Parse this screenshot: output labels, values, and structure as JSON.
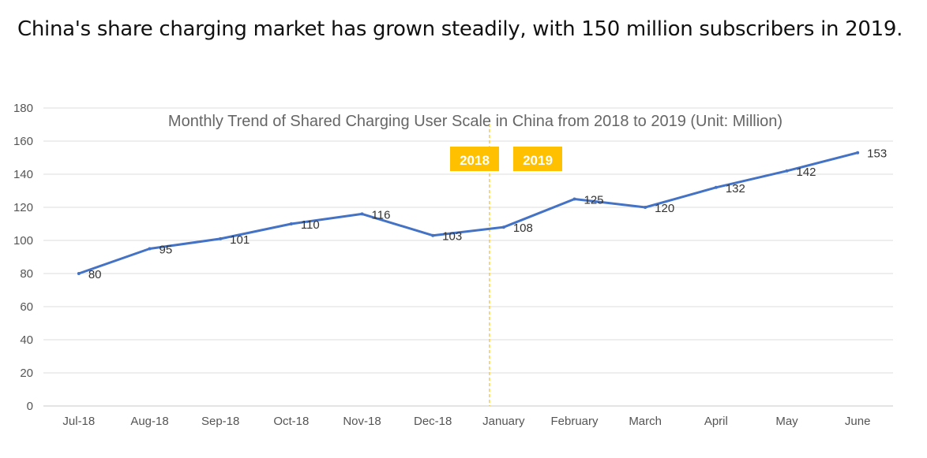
{
  "headline": "China's share charging market has grown steadily, with 150 million subscribers in 2019.",
  "chart_data": {
    "type": "line",
    "title": "Monthly Trend of Shared Charging User Scale in China from 2018 to 2019 (Unit: Million)",
    "categories": [
      "Jul-18",
      "Aug-18",
      "Sep-18",
      "Oct-18",
      "Nov-18",
      "Dec-18",
      "January",
      "February",
      "March",
      "April",
      "May",
      "June"
    ],
    "series": [
      {
        "values": [
          80,
          95,
          101,
          110,
          116,
          103,
          108,
          125,
          120,
          132,
          142,
          153
        ]
      }
    ],
    "data_labels": [
      "80",
      "95",
      "101",
      "110",
      "116",
      "103",
      "108",
      "125",
      "120",
      "132",
      "142",
      "153"
    ],
    "yticks": [
      "0",
      "20",
      "40",
      "60",
      "80",
      "100",
      "120",
      "140",
      "160",
      "180"
    ],
    "ylim": [
      0,
      180
    ],
    "grid": true,
    "line_color": "#4472C4",
    "annotations": {
      "year_left": "2018",
      "year_right": "2019",
      "year_box_color": "#FFC000",
      "divider_color": "#FFC000",
      "divider_between": [
        "Dec-18",
        "January"
      ]
    }
  }
}
